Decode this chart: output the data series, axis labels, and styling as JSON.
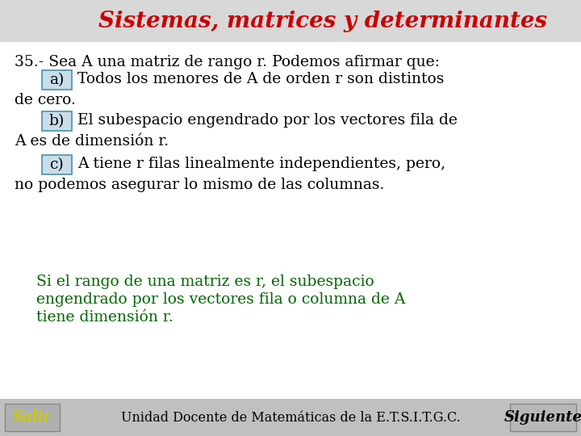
{
  "bg_color": "#ffffff",
  "header_bg": "#d8d8d8",
  "title": "Sistemas, matrices y determinantes",
  "title_color": "#cc0000",
  "title_fontsize": 20,
  "question_text": "35.- Sea A una matriz de rango r. Podemos afirmar que:",
  "option_a_label": "a)",
  "option_a_text1": "Todos los menores de A de orden r son distintos",
  "option_a_text2": "de cero.",
  "option_b_label": "b)",
  "option_b_text1": "El subespacio engendrado por los vectores fila de",
  "option_b_text2": "A es de dimensión r.",
  "option_c_label": "c)",
  "option_c_text1": "A tiene r filas linealmente independientes, pero,",
  "option_c_text2": "no podemos asegurar lo mismo de las columnas.",
  "answer_line1": "Si el rango de una matriz es r, el subespacio",
  "answer_line2": "engendrado por los vectores fila o columna de A",
  "answer_line3": "tiene dimensión r.",
  "answer_color": "#006600",
  "footer_bg": "#c0c0c0",
  "footer_text": "Unidad Docente de Matemáticas de la E.T.S.I.T.G.C.",
  "salir_text": "Salir",
  "siguiente_text": "Siguiente",
  "salir_color": "#cccc00",
  "siguiente_color": "#000000",
  "body_color": "#000000",
  "label_box_facecolor": "#c8dde8",
  "label_box_edgecolor": "#5599aa",
  "body_fontsize": 13.5,
  "answer_fontsize": 13.5,
  "footer_fontsize": 11.5,
  "button_fontsize": 13
}
